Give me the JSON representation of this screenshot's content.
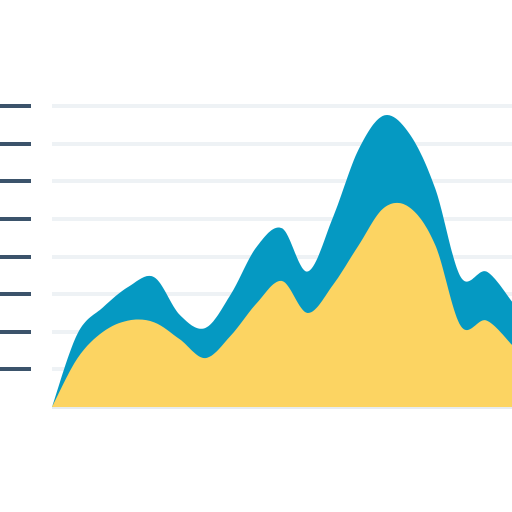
{
  "chart_data": {
    "type": "area",
    "stacked": true,
    "x": [
      0,
      1,
      2,
      3,
      4,
      5,
      6,
      7,
      8,
      9,
      10,
      11,
      12,
      13,
      14,
      15,
      16,
      17,
      18
    ],
    "series": [
      {
        "color": "#fcd462",
        "values": [
          0.0,
          2.6,
          4.0,
          4.6,
          4.5,
          3.6,
          2.6,
          3.8,
          5.5,
          6.7,
          5.0,
          6.5,
          8.6,
          10.6,
          10.6,
          8.6,
          4.3,
          4.6,
          3.3
        ]
      },
      {
        "color": "#0599c2",
        "values": [
          0.0,
          1.3,
          1.3,
          1.8,
          2.4,
          1.3,
          1.6,
          2.2,
          3.0,
          2.8,
          2.2,
          3.6,
          5.1,
          4.9,
          3.9,
          3.0,
          2.6,
          2.6,
          2.3
        ]
      }
    ],
    "xlim": [
      0,
      18
    ],
    "ylim": [
      0,
      16
    ],
    "grid": true,
    "legend": "none",
    "tick_color": "#3b536b",
    "grid_color": "#eef2f5",
    "axis_color": "#e6ecf0"
  }
}
